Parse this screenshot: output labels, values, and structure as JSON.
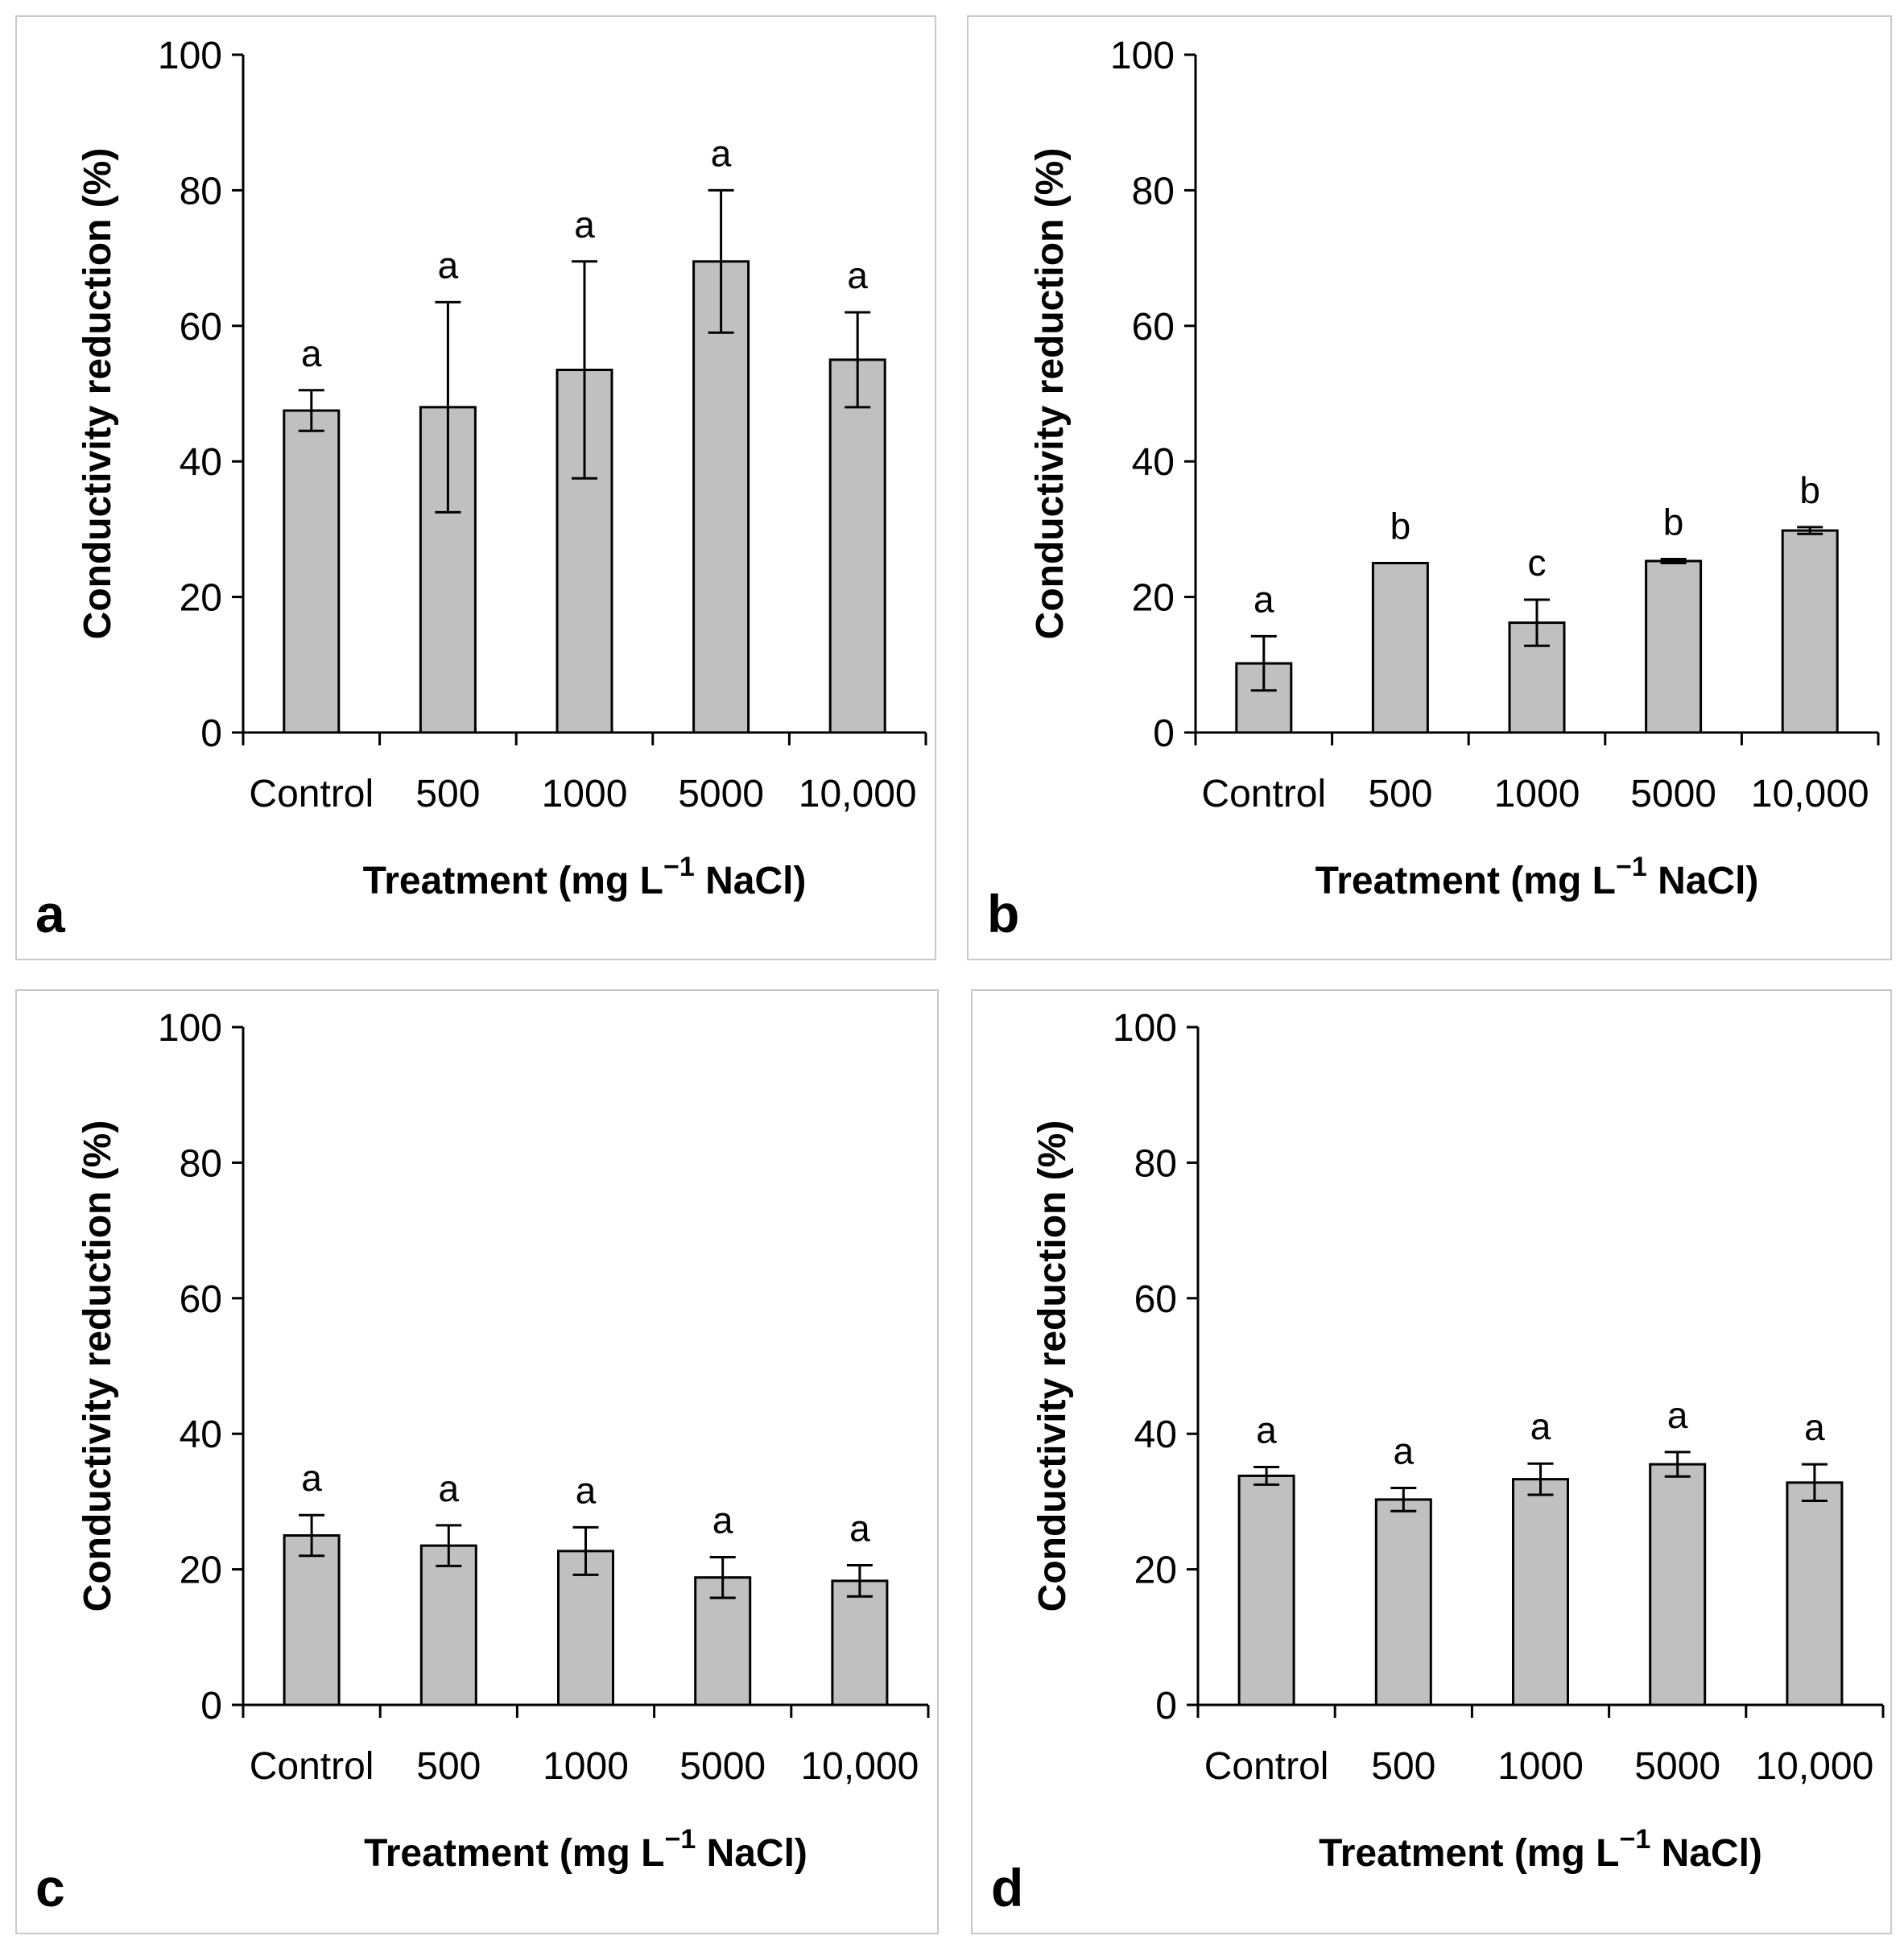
{
  "chart_data": [
    {
      "type": "bar",
      "panel": "a",
      "categories": [
        "Control",
        "500",
        "1000",
        "5000",
        "10,000"
      ],
      "values": [
        47.5,
        48,
        53.5,
        69.5,
        55
      ],
      "errors": [
        3,
        15.5,
        16,
        10.5,
        7
      ],
      "significance": [
        "a",
        "a",
        "a",
        "a",
        "a"
      ],
      "ylabel": "Conductivity reduction (%)",
      "xlabel_prefix": "Treatment (mg L",
      "xlabel_sup": "−1",
      "xlabel_suffix": " NaCl)",
      "ylim": [
        0,
        100
      ],
      "yticks": [
        "0",
        "20",
        "40",
        "60",
        "80",
        "100"
      ]
    },
    {
      "type": "bar",
      "panel": "b",
      "categories": [
        "Control",
        "500",
        "1000",
        "5000",
        "10,000"
      ],
      "values": [
        10.2,
        25,
        16.2,
        25.3,
        29.8
      ],
      "errors": [
        4,
        0,
        3.4,
        0.3,
        0.5
      ],
      "significance": [
        "a",
        "b",
        "c",
        "b",
        "b"
      ],
      "ylabel": "Conductivity reduction (%)",
      "xlabel_prefix": "Treatment (mg L",
      "xlabel_sup": "−1",
      "xlabel_suffix": " NaCl)",
      "ylim": [
        0,
        100
      ],
      "yticks": [
        "0",
        "20",
        "40",
        "60",
        "80",
        "100"
      ]
    },
    {
      "type": "bar",
      "panel": "c",
      "categories": [
        "Control",
        "500",
        "1000",
        "5000",
        "10,000"
      ],
      "values": [
        25,
        23.5,
        22.7,
        18.8,
        18.3
      ],
      "errors": [
        3,
        3,
        3.5,
        3,
        2.3
      ],
      "significance": [
        "a",
        "a",
        "a",
        "a",
        "a"
      ],
      "ylabel": "Conductivity reduction (%)",
      "xlabel_prefix": "Treatment (mg L",
      "xlabel_sup": "−1",
      "xlabel_suffix": " NaCl)",
      "ylim": [
        0,
        100
      ],
      "yticks": [
        "0",
        "20",
        "40",
        "60",
        "80",
        "100"
      ]
    },
    {
      "type": "bar",
      "panel": "d",
      "categories": [
        "Control",
        "500",
        "1000",
        "5000",
        "10,000"
      ],
      "values": [
        33.8,
        30.3,
        33.3,
        35.5,
        32.8
      ],
      "errors": [
        1.3,
        1.7,
        2.3,
        1.8,
        2.7
      ],
      "significance": [
        "a",
        "a",
        "a",
        "a",
        "a"
      ],
      "ylabel": "Conductivity reduction (%)",
      "xlabel_prefix": "Treatment (mg L",
      "xlabel_sup": "−1",
      "xlabel_suffix": " NaCl)",
      "ylim": [
        0,
        100
      ],
      "yticks": [
        "0",
        "20",
        "40",
        "60",
        "80",
        "100"
      ]
    }
  ]
}
